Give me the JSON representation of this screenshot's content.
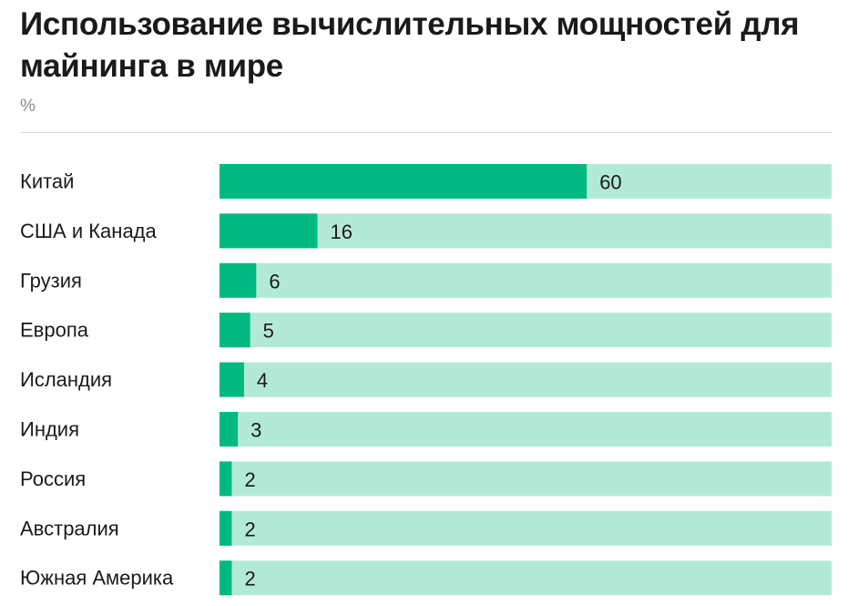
{
  "header": {
    "title": "Использование вычислительных мощностей для майнинга в мире",
    "unit": "%"
  },
  "colors": {
    "bar": "#00b980",
    "track": "#b3ead7",
    "text": "#1a1a1a",
    "muted": "#8a8a8a"
  },
  "chart_data": {
    "type": "bar",
    "orientation": "horizontal",
    "title": "Использование вычислительных мощностей для майнинга в мире",
    "unit": "%",
    "xlim": [
      0,
      100
    ],
    "grid": false,
    "legend": "none",
    "categories": [
      "Китай",
      "США и Канада",
      "Грузия",
      "Европа",
      "Исландия",
      "Индия",
      "Россия",
      "Австралия",
      "Южная Америка"
    ],
    "values": [
      60,
      16,
      6,
      5,
      4,
      3,
      2,
      2,
      2
    ],
    "value_labels": [
      "60",
      "16",
      "6",
      "5",
      "4",
      "3",
      "2",
      "2",
      "2"
    ]
  }
}
